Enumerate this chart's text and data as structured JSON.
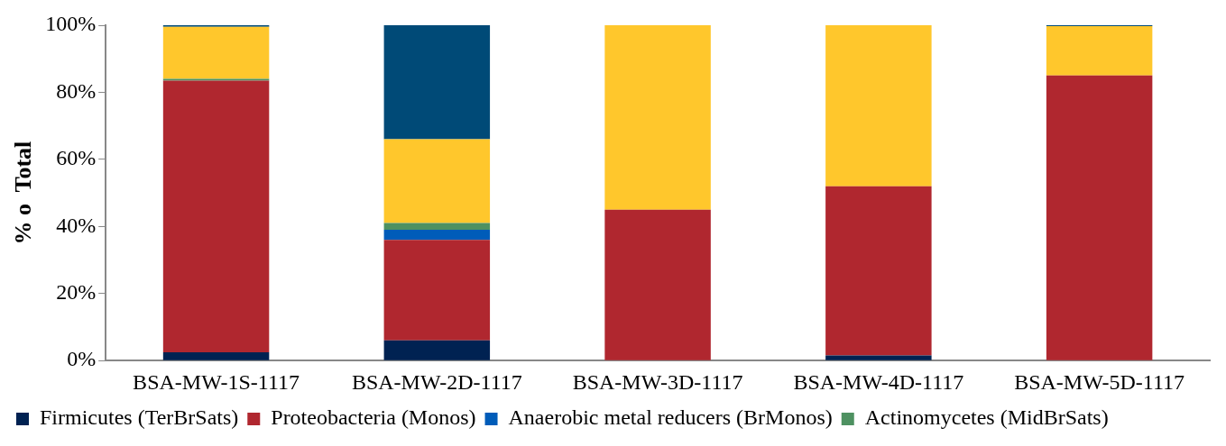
{
  "chart_data": {
    "type": "bar",
    "stacked": true,
    "ylabel": "% o  Total",
    "categories": [
      "BSA-MW-1S-1117",
      "BSA-MW-2D-1117",
      "BSA-MW-3D-1117",
      "BSA-MW-4D-1117",
      "BSA-MW-5D-1117"
    ],
    "series": [
      {
        "name": "Firmicutes (TerBrSats)",
        "color": "#002252",
        "values": [
          2.5,
          6,
          0,
          1.5,
          0
        ]
      },
      {
        "name": "Proteobacteria (Monos)",
        "color": "#b0272f",
        "values": [
          81,
          30,
          45,
          50.5,
          85
        ]
      },
      {
        "name": "Anaerobic metal reducers (BrMonos)",
        "color": "#005cb9",
        "values": [
          0,
          3,
          0,
          0,
          0
        ]
      },
      {
        "name": "Actinomycetes (MidBrSats)",
        "color": "#4e9161",
        "values": [
          0.5,
          2,
          0,
          0,
          0
        ]
      },
      {
        "color": "#ffc72c",
        "values": [
          15.5,
          25,
          55,
          48,
          14.7
        ]
      },
      {
        "color": "#004a77",
        "values": [
          0.5,
          34,
          0,
          0,
          0.3
        ]
      }
    ],
    "ylim": [
      0,
      100
    ],
    "yticks": [
      {
        "value": 0,
        "label": "0%"
      },
      {
        "value": 20,
        "label": "20%"
      },
      {
        "value": 40,
        "label": "40%"
      },
      {
        "value": 60,
        "label": "60%"
      },
      {
        "value": 80,
        "label": "80%"
      },
      {
        "value": 100,
        "label": "100%"
      }
    ],
    "grid": false,
    "legend": "bottom"
  }
}
